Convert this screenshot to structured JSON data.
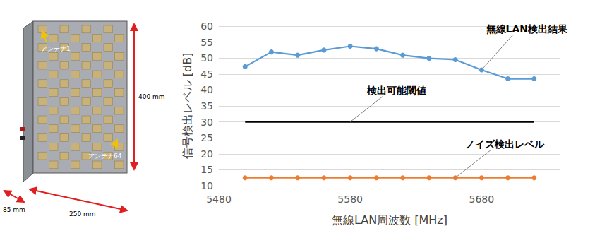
{
  "chart_data": {
    "type": "line",
    "x_label": "無線LAN周波数 [MHz]",
    "y_label": "信号検出レベル [dB]",
    "x": [
      5500,
      5520,
      5540,
      5560,
      5580,
      5600,
      5620,
      5640,
      5660,
      5680,
      5700,
      5720
    ],
    "series": [
      {
        "name": "無線LAN検出結果",
        "color": "#5b9bd5",
        "marker": "circle",
        "line_style": "solid",
        "values": [
          47.3,
          51.9,
          50.9,
          52.5,
          53.7,
          52.9,
          50.9,
          49.9,
          49.5,
          46.3,
          43.5,
          43.5
        ]
      },
      {
        "name": "検出可能閾値",
        "color": "#000000",
        "marker": "none",
        "line_style": "solid",
        "values": [
          30,
          30,
          30,
          30,
          30,
          30,
          30,
          30,
          30,
          30,
          30,
          30
        ]
      },
      {
        "name": "ノイズ検出レベル",
        "color": "#ed7d31",
        "marker": "circle",
        "line_style": "solid",
        "values": [
          12.5,
          12.5,
          12.5,
          12.5,
          12.5,
          12.5,
          12.5,
          12.5,
          12.5,
          12.5,
          12.5,
          12.5
        ]
      }
    ],
    "xlim": [
      5480,
      5740
    ],
    "xticks": [
      5480,
      5580,
      5680
    ],
    "ylim": [
      10,
      60
    ],
    "yticks": [
      10,
      15,
      20,
      25,
      30,
      35,
      40,
      45,
      50,
      55,
      60
    ],
    "grid": true
  },
  "device": {
    "antenna_first": "アンテナ1",
    "antenna_last": "アンテナ64",
    "height": "400 mm",
    "width": "250 mm",
    "depth": "85 mm"
  }
}
